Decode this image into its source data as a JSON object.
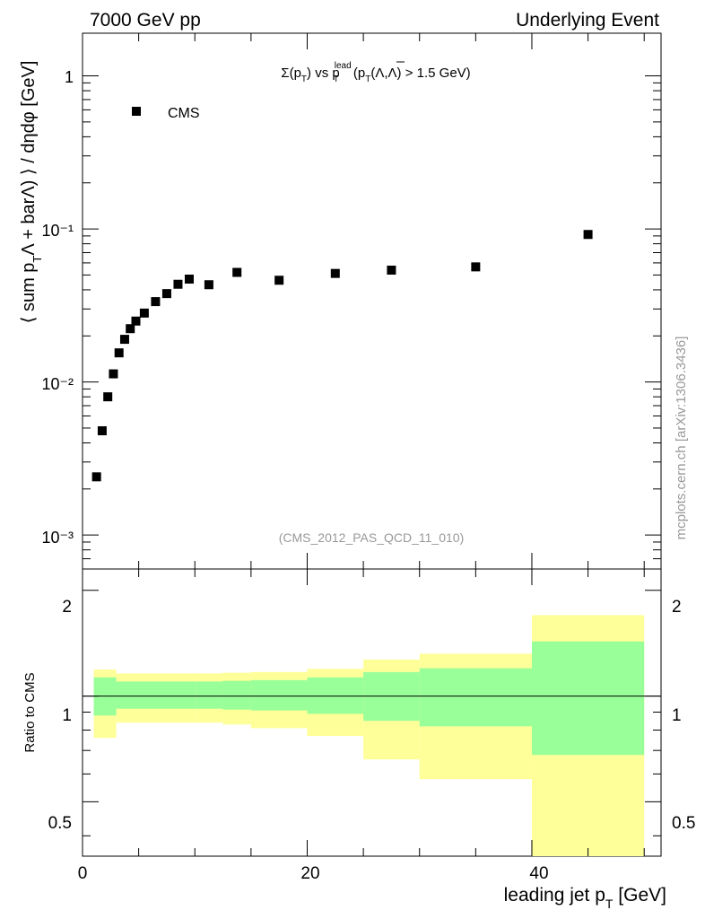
{
  "header": {
    "left": "7000 GeV pp",
    "right": "Underlying Event"
  },
  "side_label": "mcplots.cern.ch [arXiv:1306.3436]",
  "colors": {
    "outer_band": "#ffff99",
    "inner_band": "#99ff99",
    "marker": "#000000",
    "watermark": "#999999"
  },
  "chart_data": [
    {
      "type": "scatter",
      "title": "Σ(p_T) vs p_T^lead (p_T(Λ,Λ̄) > 1.5 GeV)",
      "title_parts": {
        "sigma": "Σ(p",
        "t1": "T",
        "mid": ") vs p",
        "lead": "lead",
        "t2": "T",
        "open": " (p",
        "t3": "T",
        "end": "(Λ,Λ) > 1.5 GeV)"
      },
      "ylabel": "⟨ sum p_T(Λ + barΛ) ⟩ / dηdφ [GeV]",
      "ylabel_parts": {
        "a": "⟨ sum p",
        "b": "T",
        "c": "Λ + barΛ) ⟩ / dηdφ [GeV]"
      },
      "yscale": "log",
      "ylim": [
        0.0006,
        1.9
      ],
      "xlim": [
        0,
        51.5
      ],
      "legend": [
        "CMS"
      ],
      "watermark": "(CMS_2012_PAS_QCD_11_010)",
      "y_tick_labels": [
        "10⁻³",
        "10⁻²",
        "10⁻¹",
        "1"
      ],
      "series": [
        {
          "name": "CMS",
          "x": [
            1.25,
            1.75,
            2.25,
            2.75,
            3.25,
            3.75,
            4.25,
            4.75,
            5.5,
            6.5,
            7.5,
            8.5,
            9.5,
            11.25,
            13.75,
            17.5,
            22.5,
            27.5,
            35.0,
            45.0
          ],
          "y": [
            0.0024,
            0.0048,
            0.008,
            0.0113,
            0.0155,
            0.019,
            0.0223,
            0.025,
            0.0282,
            0.0335,
            0.0378,
            0.0435,
            0.047,
            0.0432,
            0.052,
            0.0462,
            0.0512,
            0.0538,
            0.0565,
            0.092
          ]
        }
      ]
    },
    {
      "type": "area",
      "ylabel": "Ratio to CMS",
      "xlabel": "leading jet p_T [GeV]",
      "xlabel_parts": {
        "a": "leading jet p",
        "b": "T",
        "c": " [GeV]"
      },
      "xlim": [
        0,
        51.5
      ],
      "ylim": [
        0.35,
        2.3
      ],
      "x_tick_labels": [
        "0",
        "20",
        "40"
      ],
      "y_tick_labels": [
        "0.5",
        "1",
        "2"
      ],
      "reference_line": 1.0,
      "bins": [
        {
          "lo": 1,
          "hi": 3,
          "outer": [
            0.76,
            1.19
          ],
          "inner": [
            0.88,
            1.13
          ]
        },
        {
          "lo": 3,
          "hi": 10,
          "outer": [
            0.84,
            1.16
          ],
          "inner": [
            0.92,
            1.1
          ]
        },
        {
          "lo": 10,
          "hi": 12.5,
          "outer": [
            0.84,
            1.16
          ],
          "inner": [
            0.92,
            1.1
          ]
        },
        {
          "lo": 12.5,
          "hi": 15,
          "outer": [
            0.83,
            1.165
          ],
          "inner": [
            0.915,
            1.105
          ]
        },
        {
          "lo": 15,
          "hi": 20,
          "outer": [
            0.81,
            1.17
          ],
          "inner": [
            0.91,
            1.11
          ]
        },
        {
          "lo": 20,
          "hi": 25,
          "outer": [
            0.77,
            1.195
          ],
          "inner": [
            0.89,
            1.13
          ]
        },
        {
          "lo": 25,
          "hi": 30,
          "outer": [
            0.66,
            1.27
          ],
          "inner": [
            0.85,
            1.17
          ]
        },
        {
          "lo": 30,
          "hi": 40,
          "outer": [
            0.58,
            1.32
          ],
          "inner": [
            0.82,
            1.2
          ]
        },
        {
          "lo": 40,
          "hi": 50,
          "outer": [
            0.32,
            1.7
          ],
          "inner": [
            0.68,
            1.43
          ]
        }
      ]
    }
  ]
}
